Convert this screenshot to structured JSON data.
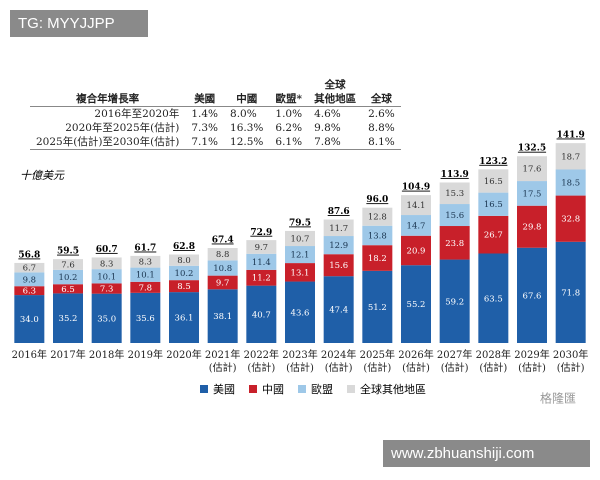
{
  "watermark_top": "TG: MYYJJPP",
  "watermark_bottom": "www.zbhuanshiji.com",
  "logo": "格隆匯",
  "table": {
    "header": [
      "複合年增長率",
      "美國",
      "中國",
      "歐盟*",
      "全球\n其他地區",
      "全球"
    ],
    "rows": [
      [
        "2016年至2020年",
        "1.4%",
        "8.0%",
        "1.0%",
        "4.6%",
        "2.6%"
      ],
      [
        "2020年至2025年(估計)",
        "7.3%",
        "16.3%",
        "6.2%",
        "9.8%",
        "8.8%"
      ],
      [
        "2025年(估計)至2030年(估計)",
        "7.1%",
        "12.5%",
        "6.1%",
        "7.8%",
        "8.1%"
      ]
    ]
  },
  "chart_data": {
    "type": "stacked_bar",
    "unit_label": "十億美元",
    "categories": [
      "2016年",
      "2017年",
      "2018年",
      "2019年",
      "2020年",
      "2021年\n(估計)",
      "2022年\n(估計)",
      "2023年\n(估計)",
      "2024年\n(估計)",
      "2025年\n(估計)",
      "2026年\n(估計)",
      "2027年\n(估計)",
      "2028年\n(估計)",
      "2029年\n(估計)",
      "2030年\n(估計)"
    ],
    "series": [
      {
        "name": "美國",
        "color": "#1f5fa8",
        "label_color": "#ffffff",
        "values": [
          34.0,
          35.2,
          35.0,
          35.6,
          36.1,
          38.1,
          40.7,
          43.6,
          47.4,
          51.2,
          55.2,
          59.2,
          63.5,
          67.6,
          71.8
        ],
        "value_labels": [
          "34.0",
          "35.2",
          "35.0",
          "35.6",
          "36.1",
          "38.1",
          "40.7",
          "43.6",
          "47.4",
          "51.2",
          "55.2",
          "59.2",
          "63.5",
          "67.6",
          "71.8"
        ]
      },
      {
        "name": "中國",
        "color": "#c8202a",
        "label_color": "#ffffff",
        "values": [
          6.3,
          6.5,
          7.3,
          7.8,
          8.5,
          9.7,
          11.2,
          13.1,
          15.6,
          18.2,
          20.9,
          23.8,
          26.7,
          29.8,
          32.8
        ],
        "value_labels": [
          "6.3",
          "6.5",
          "7.3",
          "7.8",
          "8.5",
          "9.7",
          "11.2",
          "13.1",
          "15.6",
          "18.2",
          "20.9",
          "23.8",
          "26.7",
          "29.8",
          "32.8"
        ]
      },
      {
        "name": "歐盟",
        "color": "#9ec8e8",
        "label_color": "#1a3550",
        "values": [
          9.8,
          10.2,
          10.1,
          10.1,
          10.2,
          10.8,
          11.4,
          12.1,
          12.9,
          13.8,
          14.7,
          15.6,
          16.5,
          17.5,
          18.5
        ],
        "value_labels": [
          "9.8",
          "10.2",
          "10.1",
          "10.1",
          "10.2",
          "10.8",
          "11.4",
          "12.1",
          "12.9",
          "13.8",
          "14.7",
          "15.6",
          "16.5",
          "17.5",
          "18.5"
        ]
      },
      {
        "name": "全球其他地區",
        "color": "#d9d9d9",
        "label_color": "#333333",
        "values": [
          6.7,
          7.6,
          8.3,
          8.3,
          8.0,
          8.8,
          9.7,
          10.7,
          11.7,
          12.8,
          14.1,
          15.3,
          16.5,
          17.6,
          18.7
        ],
        "value_labels": [
          "6.7",
          "7.6",
          "8.3",
          "8.3",
          "8.0",
          "8.8",
          "9.7",
          "10.7",
          "11.7",
          "12.8",
          "14.1",
          "15.3",
          "16.5",
          "17.6",
          "18.7"
        ]
      }
    ],
    "totals": [
      56.8,
      59.5,
      60.7,
      61.7,
      62.8,
      67.4,
      72.9,
      79.5,
      87.6,
      96.0,
      104.9,
      113.9,
      123.2,
      132.5,
      141.9
    ],
    "total_labels": [
      "56.8",
      "59.5",
      "60.7",
      "61.7",
      "62.8",
      "67.4",
      "72.9",
      "79.5",
      "87.6",
      "96.0",
      "104.9",
      "113.9",
      "123.2",
      "132.5",
      "141.9"
    ]
  }
}
